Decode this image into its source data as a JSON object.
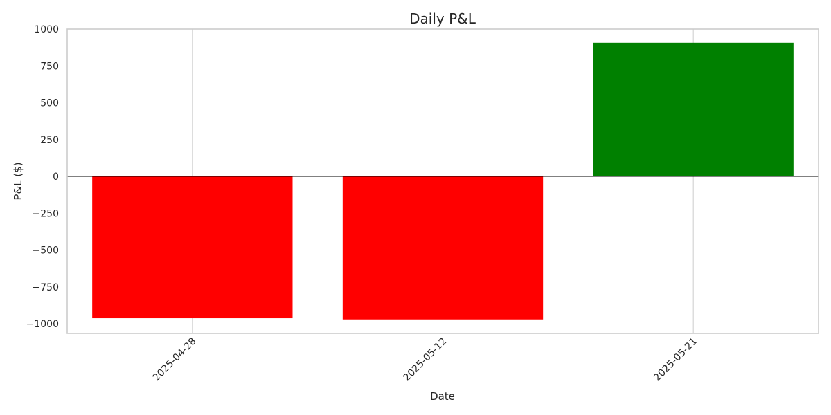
{
  "chart_data": {
    "type": "bar",
    "title": "Daily P&L",
    "xlabel": "Date",
    "ylabel": "P&L ($)",
    "categories": [
      "2025-04-28",
      "2025-05-12",
      "2025-05-21"
    ],
    "values": [
      -962,
      -970,
      907
    ],
    "ylim": [
      -1065,
      1000
    ],
    "yticks": [
      -1000,
      -750,
      -500,
      -250,
      0,
      250,
      500,
      750,
      1000
    ],
    "ytick_labels": [
      "−1000",
      "−750",
      "−500",
      "−250",
      "0",
      "250",
      "500",
      "750",
      "1000"
    ],
    "grid": true,
    "zero_line": true,
    "colors": {
      "positive": "#008000",
      "negative": "#ff0000",
      "grid": "#cccccc",
      "frame": "#cccccc",
      "zero_line": "#000000",
      "text": "#262626"
    }
  }
}
